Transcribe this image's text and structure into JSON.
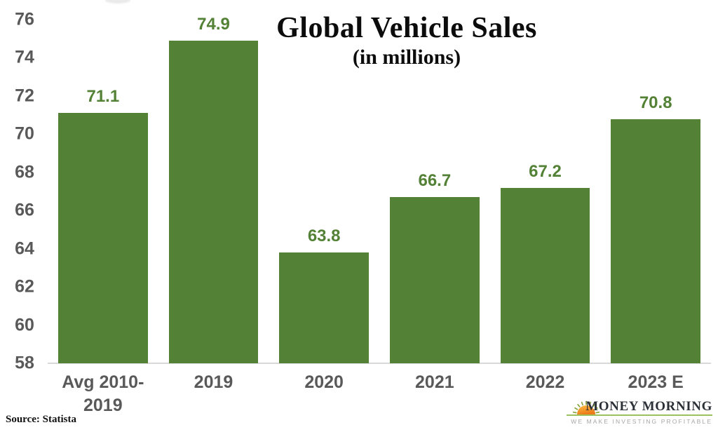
{
  "chart_data": {
    "type": "bar",
    "title": "Global Vehicle Sales",
    "subtitle": "(in millions)",
    "xlabel": "",
    "ylabel": "",
    "categories": [
      "Avg 2010-2019",
      "2019",
      "2020",
      "2021",
      "2022",
      "2023 E"
    ],
    "values": [
      71.1,
      74.9,
      63.8,
      66.7,
      67.2,
      70.8
    ],
    "data_labels": [
      "71.1",
      "74.9",
      "63.8",
      "66.7",
      "67.2",
      "70.8"
    ],
    "y_ticks": [
      76,
      74,
      72,
      70,
      68,
      66,
      64,
      62,
      60,
      58
    ],
    "ylim": [
      58,
      76
    ],
    "grid": false,
    "legend": "none",
    "colors": {
      "bar": "#538135",
      "data_label": "#538135",
      "axis_text": "#595959",
      "baseline": "#d9d9d9"
    }
  },
  "source": {
    "label": "Source: Statista"
  },
  "logo": {
    "name": "MONEY MORNING",
    "tagline": "WE MAKE INVESTING PROFITABLE",
    "icon": "sunrise-icon",
    "colors": {
      "text": "#2b2f36",
      "tagline": "#a6a6a6",
      "line": "#9cc25e",
      "sun_top": "#fcc044",
      "sun_bottom": "#ec7a18",
      "rays": "#86a63d"
    }
  }
}
